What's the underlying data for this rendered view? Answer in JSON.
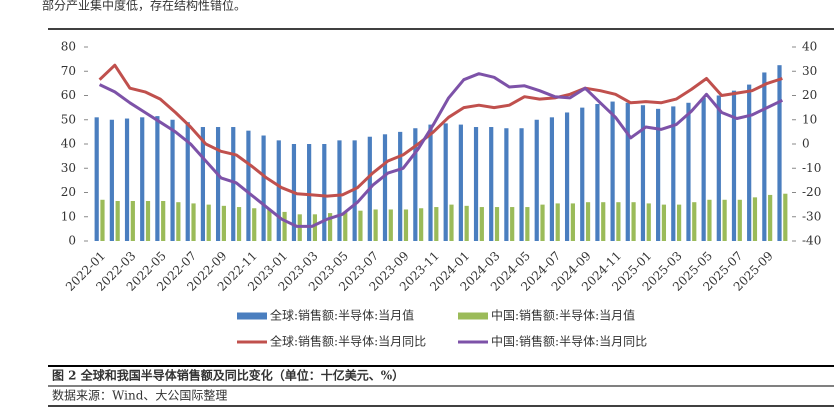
{
  "intro_text": "部分产业集中度低，存在结构性错位。",
  "caption": "图 2 全球和我国半导体销售额及同比变化（单位：十亿美元、%）",
  "source": "数据来源：Wind、大公国际整理",
  "chart_data": {
    "type": "bar",
    "categories": [
      "2022-01",
      null,
      "2022-03",
      null,
      "2022-05",
      null,
      "2022-07",
      null,
      "2022-09",
      null,
      "2022-11",
      null,
      "2023-01",
      null,
      "2023-03",
      null,
      "2023-05",
      null,
      "2023-07",
      null,
      "2023-09",
      null,
      "2023-11",
      null,
      "2024-01",
      null,
      "2024-03",
      null,
      "2024-05",
      null,
      "2024-07",
      null,
      "2024-09",
      null,
      "2024-11",
      null,
      "2025-01",
      null,
      "2025-03",
      null,
      "2025-05",
      null,
      "2025-07",
      null,
      "2025-09",
      null
    ],
    "series": [
      {
        "name": "全球:销售额:半导体:当月值",
        "type": "bar",
        "color": "#4a7ebf",
        "values": [
          51,
          50,
          50.5,
          51,
          51.5,
          50,
          49,
          47,
          47,
          47,
          45.5,
          43.5,
          41.5,
          40,
          40,
          40,
          41.5,
          41.5,
          43,
          44,
          45,
          46.5,
          48,
          48.5,
          48,
          47,
          47,
          46.5,
          46.5,
          50,
          51,
          53,
          55,
          56.5,
          57.5,
          57,
          56,
          54.5,
          55.5,
          57,
          59,
          60,
          62,
          64.5,
          69.5,
          72.5
        ]
      },
      {
        "name": "中国:销售额:半导体:当月值",
        "type": "bar",
        "color": "#9bbb59",
        "values": [
          17,
          16.5,
          16.5,
          16.5,
          16.5,
          16,
          15.5,
          15,
          14.5,
          14,
          13.5,
          13,
          12,
          11,
          11,
          11.5,
          12,
          12.5,
          13,
          13,
          13,
          13.5,
          14,
          15,
          14.5,
          14,
          14,
          14,
          14,
          15,
          15.5,
          15.5,
          16,
          16,
          16,
          16,
          15.5,
          15,
          15,
          16,
          17,
          17,
          17,
          18,
          19,
          19.5
        ]
      },
      {
        "name": "全球:销售额:半导体:当月同比",
        "type": "line",
        "axis": "y2",
        "color": "#c0504d",
        "values": [
          26.5,
          32.5,
          23,
          21.5,
          18.5,
          13,
          7,
          0,
          -3,
          -4.5,
          -9,
          -14,
          -18,
          -20.5,
          -21,
          -21.5,
          -21,
          -18,
          -12,
          -7,
          -4.5,
          0,
          5,
          11,
          15,
          16,
          15,
          16,
          19.5,
          18.5,
          19,
          20.5,
          23,
          22,
          20.5,
          17,
          17.5,
          17,
          18.5,
          22.5,
          27,
          20,
          21,
          22,
          25,
          27
        ]
      },
      {
        "name": "中国:销售额:半导体:当月同比",
        "type": "line",
        "axis": "y2",
        "color": "#7d52a8",
        "values": [
          24.5,
          21.5,
          17,
          13,
          9,
          5,
          0,
          -7,
          -14,
          -16,
          -21,
          -26,
          -31,
          -34,
          -34,
          -31,
          -29,
          -24,
          -17,
          -12,
          -10,
          -2,
          8,
          19,
          26.5,
          29,
          27.5,
          23.5,
          24,
          22,
          19.5,
          19,
          23,
          17,
          11,
          2.5,
          7,
          6,
          8,
          13.5,
          20.5,
          13,
          10.5,
          12,
          15,
          18
        ]
      }
    ],
    "ylim": [
      0,
      80
    ],
    "yticks": [
      0,
      10,
      20,
      30,
      40,
      50,
      60,
      70,
      80
    ],
    "y2lim": [
      -40,
      40
    ],
    "y2ticks": [
      -40,
      -30,
      -20,
      -10,
      0,
      10,
      20,
      30,
      40
    ],
    "grid": false
  }
}
